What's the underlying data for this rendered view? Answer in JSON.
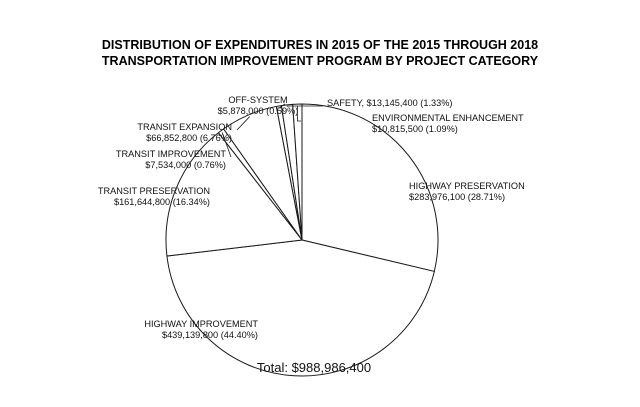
{
  "chart_data": {
    "type": "pie",
    "title": [
      "DISTRIBUTION OF EXPENDITURES IN 2015 OF THE 2015 THROUGH 2018",
      "TRANSPORTATION IMPROVEMENT PROGRAM BY PROJECT CATEGORY"
    ],
    "slices": [
      {
        "label": "HIGHWAY PRESERVATION",
        "value_text": "$283,976,100 (28.71%)",
        "value": 283976100,
        "percent": 28.71
      },
      {
        "label": "HIGHWAY IMPROVEMENT",
        "value_text": "$439,139,800 (44.40%)",
        "value": 439139800,
        "percent": 44.4
      },
      {
        "label": "TRANSIT PRESERVATION",
        "value_text": "$161,644,800 (16.34%)",
        "value": 161644800,
        "percent": 16.34
      },
      {
        "label": "TRANSIT IMPROVEMENT",
        "value_text": "$7,534,000 (0.76%)",
        "value": 7534000,
        "percent": 0.76
      },
      {
        "label": "TRANSIT EXPANSION",
        "value_text": "$66,852,800 (6.76%)",
        "value": 66852800,
        "percent": 6.76
      },
      {
        "label": "OFF-SYSTEM",
        "value_text": "$5,878,000 (0.59%)",
        "value": 5878000,
        "percent": 0.59
      },
      {
        "label": "SAFETY,",
        "value_text": "$13,145,400 (1.33%)",
        "value": 13145400,
        "percent": 1.33
      },
      {
        "label": "ENVIRONMENTAL ENHANCEMENT",
        "value_text": "$10,815,500 (1.09%)",
        "value": 10815500,
        "percent": 1.09
      }
    ],
    "total_text": "Total: $988,986,400"
  }
}
